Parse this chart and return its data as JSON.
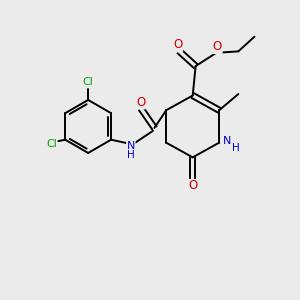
{
  "bg_color": "#ebebeb",
  "bond_color": "#000000",
  "atom_colors": {
    "N": "#0000cc",
    "O": "#cc0000",
    "Cl": "#00aa00"
  },
  "figsize": [
    3.0,
    3.0
  ],
  "dpi": 100
}
